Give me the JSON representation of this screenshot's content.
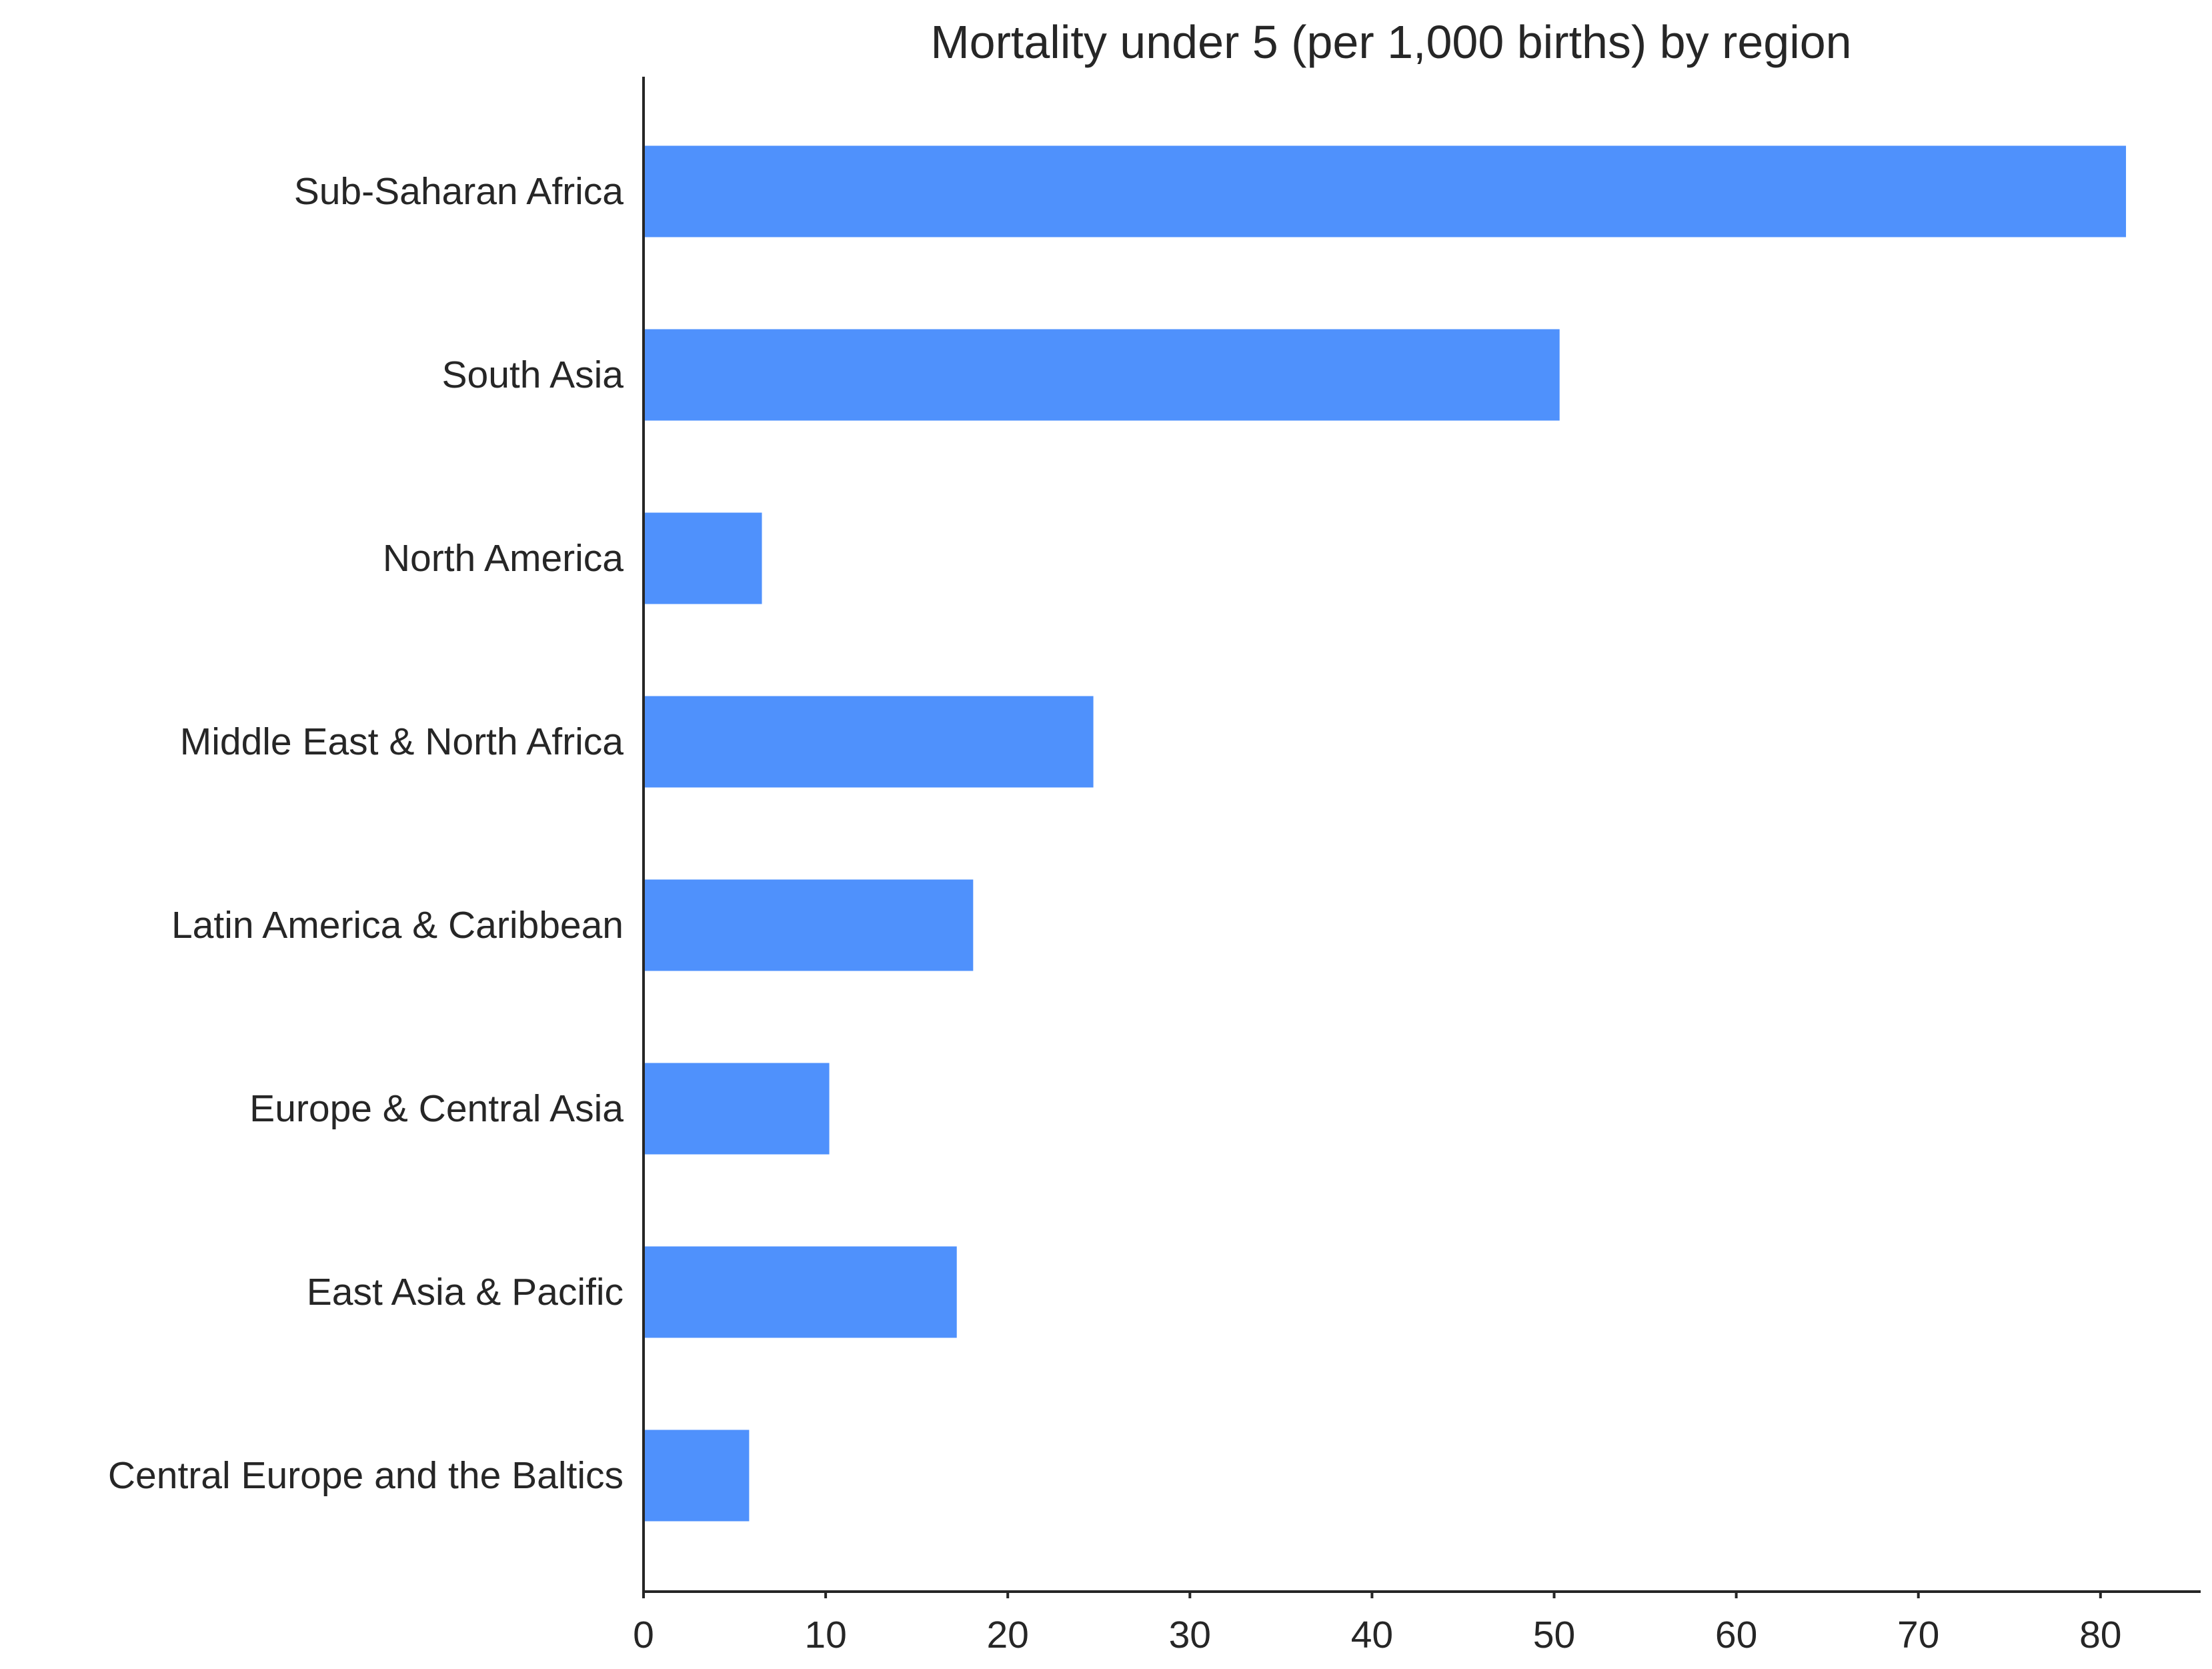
{
  "chart_data": {
    "type": "bar",
    "orientation": "horizontal",
    "title": "Mortality under 5 (per 1,000 births) by region",
    "xlabel": "",
    "ylabel": "",
    "categories": [
      "Sub-Saharan Africa",
      "South Asia",
      "North America",
      "Middle East & North Africa",
      "Latin America & Caribbean",
      "Europe & Central Asia",
      "East Asia & Pacific",
      "Central Europe and the Baltics"
    ],
    "values": [
      81.4,
      50.3,
      6.5,
      24.7,
      18.1,
      10.2,
      17.2,
      5.8
    ],
    "xlim": [
      0,
      85.5
    ],
    "xticks": [
      0,
      10,
      20,
      30,
      40,
      50,
      60,
      70,
      80
    ],
    "bar_color": "#4f91fc",
    "grid": false,
    "legend": "none"
  }
}
